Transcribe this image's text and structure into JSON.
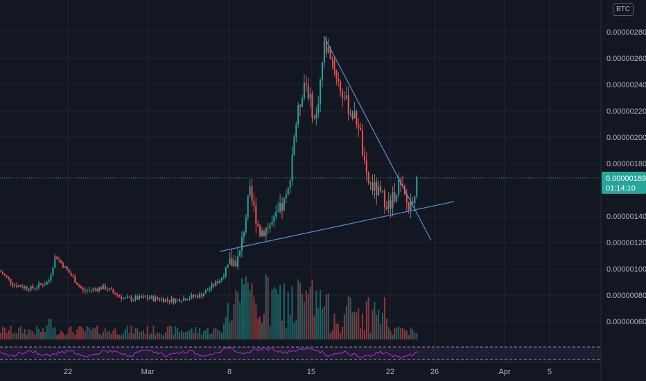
{
  "header": {
    "currency_badge": "BTC"
  },
  "colors": {
    "background": "#131722",
    "up": "#26a69a",
    "down": "#ef5350",
    "trendline": "#5b8fd6",
    "rsi": "#b030d9",
    "price_tag": "#26a69a"
  },
  "price_tag": {
    "price": "0.00000169",
    "countdown": "01:14:10"
  },
  "chart_data": {
    "type": "candlestick",
    "y_ticks": [
      "0.00000280",
      "0.00000260",
      "0.00000240",
      "0.00000220",
      "0.00000200",
      "0.00000180",
      "0.00000140",
      "0.00000120",
      "0.00000100",
      "0.00000080",
      "0.00000060"
    ],
    "x_ticks": [
      "22",
      "Mar",
      "8",
      "15",
      "22",
      "26",
      "Apr",
      "5"
    ],
    "y_range": [
      4.8e-07,
      3e-06
    ],
    "last_price": 1.69e-06,
    "ohlc_anchors": [
      {
        "label": "start",
        "close": 9.8e-07
      },
      {
        "label": "22",
        "close": 8e-07
      },
      {
        "label": "Mar",
        "close": 7.8e-07
      },
      {
        "label": "8",
        "close": 1.18e-06
      },
      {
        "label": "15",
        "close": 2.65e-06
      },
      {
        "label": "peak",
        "close": 2.78e-06
      },
      {
        "label": "22",
        "close": 1.48e-06
      },
      {
        "label": "last",
        "close": 1.69e-06
      }
    ],
    "trendlines": [
      {
        "name": "support",
        "from": [
          1.13e-06,
          "Mar 7"
        ],
        "to": [
          1.52e-06,
          "Mar 28"
        ]
      },
      {
        "name": "resistance",
        "from": [
          2.78e-06,
          "Mar 16"
        ],
        "to": [
          1.22e-06,
          "Mar 26"
        ]
      }
    ],
    "indicator": {
      "name": "RSI",
      "levels": [
        70,
        30
      ]
    }
  }
}
